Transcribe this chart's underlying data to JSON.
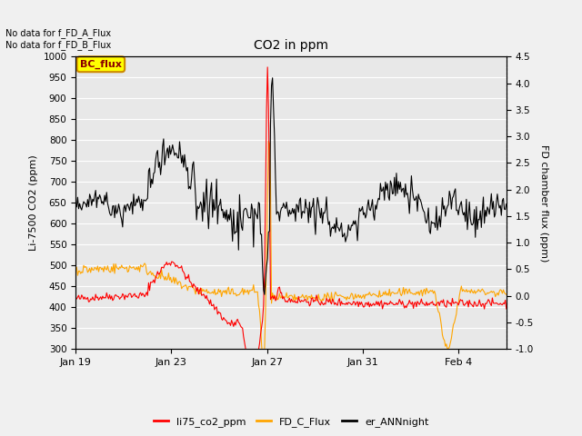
{
  "title": "CO2 in ppm",
  "ylabel_left": "Li-7500 CO2 (ppm)",
  "ylabel_right": "FD chamber flux (ppm)",
  "ylim_left": [
    300,
    1000
  ],
  "ylim_right": [
    -1.0,
    4.5
  ],
  "yticks_left": [
    300,
    350,
    400,
    450,
    500,
    550,
    600,
    650,
    700,
    750,
    800,
    850,
    900,
    950,
    1000
  ],
  "yticks_right": [
    -1.0,
    -0.5,
    0.0,
    0.5,
    1.0,
    1.5,
    2.0,
    2.5,
    3.0,
    3.5,
    4.0,
    4.5
  ],
  "xtick_labels": [
    "Jan 19",
    "Jan 23",
    "Jan 27",
    "Jan 31",
    "Feb 4"
  ],
  "xtick_pos": [
    0,
    4,
    8,
    12,
    16
  ],
  "annotation_top": "No data for f_FD_A_Flux\nNo data for f_FD_B_Flux",
  "bc_flux_label": "BC_flux",
  "legend_entries": [
    "li75_co2_ppm",
    "FD_C_Flux",
    "er_ANNnight"
  ],
  "legend_colors": [
    "#ff0000",
    "#ffa500",
    "#000000"
  ],
  "line_red_color": "#ff0000",
  "line_orange_color": "#ffa500",
  "line_black_color": "#000000",
  "background_color": "#f0f0f0",
  "plot_bg_color": "#e8e8e8",
  "grid_color": "#ffffff",
  "xlim": [
    0,
    18
  ],
  "seed": 42
}
